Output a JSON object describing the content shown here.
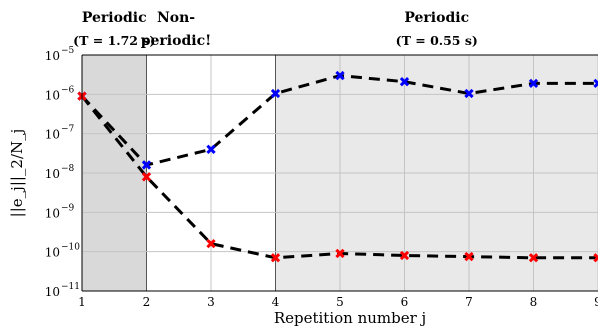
{
  "chart_data": {
    "type": "line",
    "title": "",
    "xlabel": "Repetition number j",
    "ylabel": "||e_j||_2/N_j",
    "y_scale": "log",
    "xlim": [
      1,
      9
    ],
    "ylim": [
      1e-11,
      1e-05
    ],
    "x_ticks": [
      1,
      2,
      3,
      4,
      5,
      6,
      7,
      8,
      9
    ],
    "y_ticks": [
      {
        "base": "10",
        "exp": "−11",
        "value": 1e-11
      },
      {
        "base": "10",
        "exp": "−10",
        "value": 1e-10
      },
      {
        "base": "10",
        "exp": "−9",
        "value": 1e-09
      },
      {
        "base": "10",
        "exp": "−8",
        "value": 1e-08
      },
      {
        "base": "10",
        "exp": "−7",
        "value": 1e-07
      },
      {
        "base": "10",
        "exp": "−6",
        "value": 1e-06
      },
      {
        "base": "10",
        "exp": "−5",
        "value": 1e-05
      }
    ],
    "grid": true,
    "regions": [
      {
        "x": [
          1,
          2
        ],
        "title": "Periodic",
        "subtitle": "(T = 1.72 s)",
        "shade": "#d9d9d9"
      },
      {
        "x": [
          2,
          4
        ],
        "title": "Non-",
        "subtitle": "periodic!",
        "shade": "#ffffff"
      },
      {
        "x": [
          4,
          9
        ],
        "title": "Periodic",
        "subtitle": "(T = 0.55 s)",
        "shade": "#e9e9e9"
      }
    ],
    "series": [
      {
        "color": "#0000ff",
        "marker": "x",
        "x": [
          1,
          2,
          3,
          4,
          5,
          6,
          7,
          8,
          9
        ],
        "y": [
          9e-07,
          1.6e-08,
          4e-08,
          1.05e-06,
          3e-06,
          2.1e-06,
          1.05e-06,
          1.9e-06,
          1.9e-06
        ]
      },
      {
        "color": "#ff0000",
        "marker": "x",
        "x": [
          1,
          2,
          3,
          4,
          5,
          6,
          7,
          8,
          9
        ],
        "y": [
          9e-07,
          8e-09,
          1.6e-10,
          7e-11,
          9e-11,
          8e-11,
          7.5e-11,
          7e-11,
          7e-11
        ]
      }
    ]
  }
}
